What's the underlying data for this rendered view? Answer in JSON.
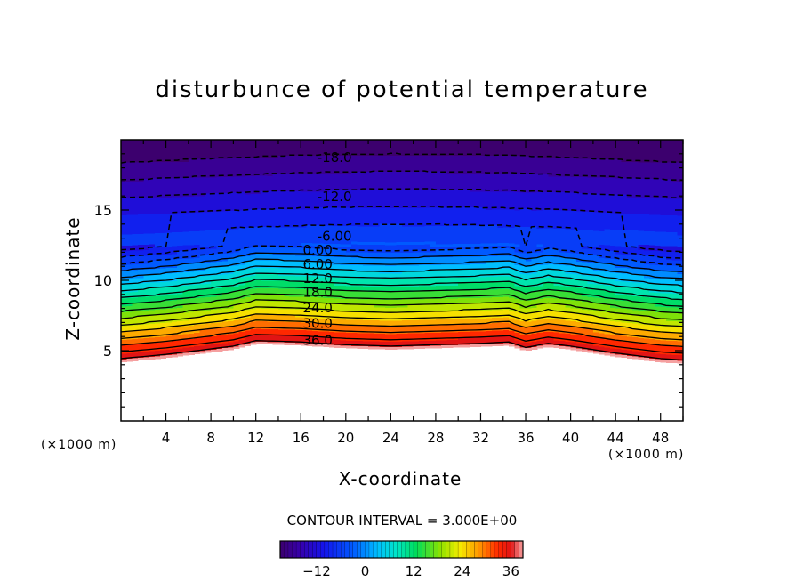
{
  "chart_data": {
    "type": "heatmap",
    "title": "disturbunce of potential temperature",
    "xlabel": "X-coordinate",
    "ylabel": "Z-coordinate",
    "x_unit": "(×1000 m)",
    "z_unit": "(×1000 m)",
    "xlim": [
      0,
      50
    ],
    "ylim": [
      0,
      20
    ],
    "x_ticks": [
      4,
      8,
      12,
      16,
      20,
      24,
      28,
      32,
      36,
      40,
      44,
      48
    ],
    "y_ticks": [
      5,
      10,
      15
    ],
    "contour_interval_text": "CONTOUR INTERVAL = 3.000E+00",
    "contour_levels": [
      -18,
      -15,
      -12,
      -9,
      -6,
      -3,
      0,
      3,
      6,
      9,
      12,
      15,
      18,
      21,
      24,
      27,
      30,
      33,
      36,
      39
    ],
    "contour_labels": [
      {
        "text": "-18.0",
        "x": 19,
        "z": 18.8,
        "dashed": true
      },
      {
        "text": "-12.0",
        "x": 19,
        "z": 16.0,
        "dashed": true
      },
      {
        "text": "-6.00",
        "x": 19,
        "z": 13.2,
        "dashed": true
      },
      {
        "text": "0.00",
        "x": 17.5,
        "z": 12.2,
        "dashed": false
      },
      {
        "text": "6.00",
        "x": 17.5,
        "z": 11.2,
        "dashed": false
      },
      {
        "text": "12.0",
        "x": 17.5,
        "z": 10.2,
        "dashed": false
      },
      {
        "text": "18.0",
        "x": 17.5,
        "z": 9.2,
        "dashed": false
      },
      {
        "text": "24.0",
        "x": 17.5,
        "z": 8.1,
        "dashed": false
      },
      {
        "text": "30.0",
        "x": 17.5,
        "z": 7.0,
        "dashed": false
      },
      {
        "text": "36.0",
        "x": 17.5,
        "z": 5.8,
        "dashed": false
      }
    ],
    "colorbar": {
      "ticks": [
        -12,
        0,
        12,
        24,
        36
      ],
      "range": [
        -21,
        39
      ]
    },
    "terrain_top_z": [
      [
        0,
        4.2
      ],
      [
        4,
        4.5
      ],
      [
        8,
        4.9
      ],
      [
        10,
        5.1
      ],
      [
        12,
        5.5
      ],
      [
        16,
        5.4
      ],
      [
        20,
        5.2
      ],
      [
        24,
        5.1
      ],
      [
        28,
        5.2
      ],
      [
        32,
        5.3
      ],
      [
        34.5,
        5.4
      ],
      [
        36,
        5.0
      ],
      [
        38,
        5.3
      ],
      [
        40,
        5.1
      ],
      [
        44,
        4.6
      ],
      [
        48,
        4.2
      ],
      [
        50,
        4.1
      ]
    ]
  }
}
